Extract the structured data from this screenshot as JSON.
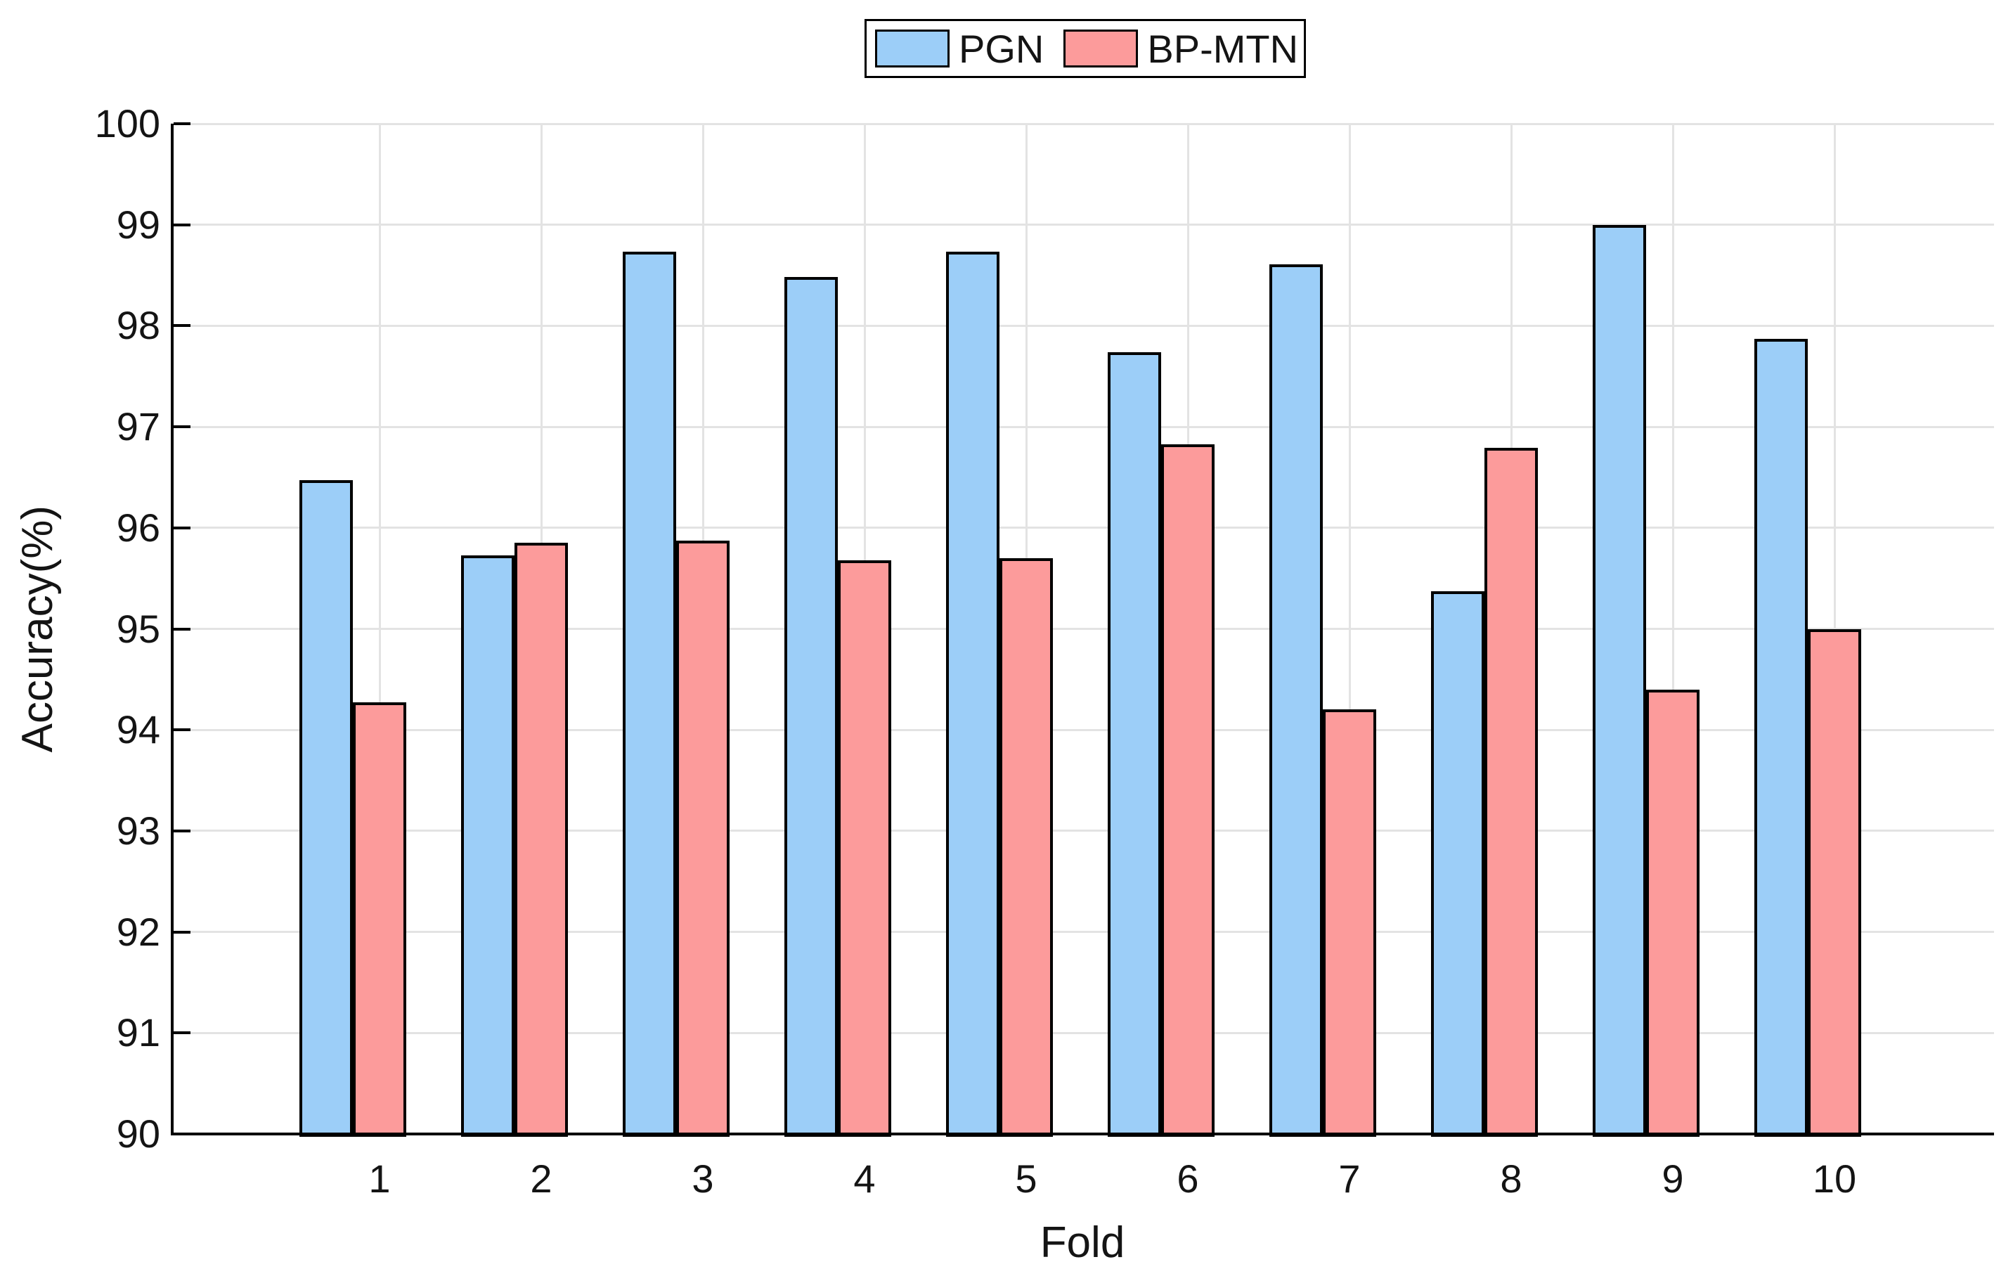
{
  "figure": {
    "background": "#ffffff",
    "text_color": "#141414"
  },
  "legend": {
    "items": [
      {
        "label": "PGN",
        "color": "#9ccef8"
      },
      {
        "label": "BP-MTN",
        "color": "#fc9b9b"
      }
    ]
  },
  "chart_data": {
    "type": "bar",
    "title": "",
    "categories": [
      "1",
      "2",
      "3",
      "4",
      "5",
      "6",
      "7",
      "8",
      "9",
      "10"
    ],
    "series": [
      {
        "name": "PGN",
        "color": "#9ccef8",
        "values": [
          96.47,
          95.73,
          98.73,
          98.48,
          98.73,
          97.74,
          98.61,
          95.37,
          99.0,
          97.87
        ]
      },
      {
        "name": "BP-MTN",
        "color": "#fc9b9b",
        "values": [
          94.27,
          95.85,
          95.87,
          95.68,
          95.7,
          96.83,
          94.2,
          96.79,
          94.4,
          95.0
        ]
      }
    ],
    "xlabel": "Fold",
    "ylabel": "Accuracy(%)",
    "ylim": [
      90,
      100
    ],
    "yticks": [
      90,
      91,
      92,
      93,
      94,
      95,
      96,
      97,
      98,
      99,
      100
    ],
    "grid": true,
    "legend_position": "top-center",
    "bar_edge_color": "#000000",
    "grid_color": "#e3e3e3",
    "axis_color": "#000000"
  }
}
